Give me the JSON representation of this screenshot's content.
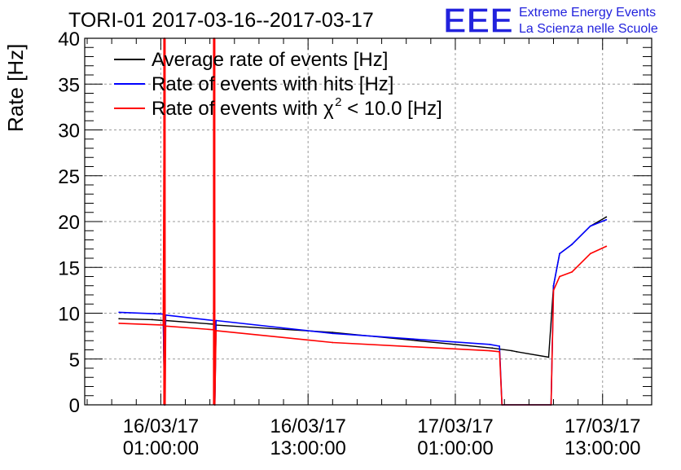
{
  "title": "TORI-01 2017-03-16--2017-03-17",
  "logo": {
    "text": "EEE",
    "line1": "Extreme Energy Events",
    "line2": "La Scienza nelle Scuole"
  },
  "colors": {
    "average": "#000000",
    "hits": "#0000ff",
    "chi2": "#ff0000",
    "grid": "#9a9a9a",
    "logo": "#2222dd"
  },
  "chart_data": {
    "type": "line",
    "title": "TORI-01 2017-03-16--2017-03-17",
    "ylabel": "Rate [Hz]",
    "ylim": [
      0,
      40
    ],
    "y_ticks": [
      "0",
      "5",
      "10",
      "15",
      "20",
      "25",
      "30",
      "35",
      "40"
    ],
    "x_ticks": [
      {
        "date": "16/03/17",
        "time": "01:00:00"
      },
      {
        "date": "16/03/17",
        "time": "13:00:00"
      },
      {
        "date": "17/03/17",
        "time": "01:00:00"
      },
      {
        "date": "17/03/17",
        "time": "13:00:00"
      }
    ],
    "xlim_hours_from_2017_03_16_00_00": [
      -5.2,
      41.0
    ],
    "grid": true,
    "legend_position": "top-left",
    "legend": [
      {
        "label": "Average rate of events [Hz]",
        "color": "#000000"
      },
      {
        "label": "Rate of events with hits [Hz]",
        "color": "#0000ff"
      },
      {
        "label": "Rate of events with",
        "label_suffix": "< 10.0 [Hz]",
        "chi": "χ",
        "sup": "2",
        "color": "#ff0000"
      }
    ],
    "series": [
      {
        "name": "Average rate of events [Hz]",
        "color": "#000000",
        "x": [
          -2.4,
          0.3,
          1.2,
          1.3,
          1.4,
          5.3,
          5.4,
          5.5,
          15.0,
          28.0,
          29.6,
          30.0,
          32.6,
          33.0,
          33.5,
          34.5,
          36.0,
          37.3
        ],
        "y": [
          9.4,
          9.3,
          9.2,
          0,
          9.2,
          8.8,
          0,
          8.7,
          7.9,
          6.2,
          5.9,
          5.8,
          5.2,
          13.0,
          16.5,
          17.5,
          19.5,
          20.5
        ]
      },
      {
        "name": "Rate of events with hits [Hz]",
        "color": "#0000ff",
        "x": [
          -2.4,
          1.2,
          1.3,
          1.4,
          5.3,
          5.4,
          5.5,
          15.0,
          27.8,
          28.6,
          28.8,
          32.8,
          33.0,
          33.5,
          34.5,
          36.0,
          37.3
        ],
        "y": [
          10.1,
          9.9,
          0,
          9.8,
          9.2,
          0,
          9.2,
          7.8,
          6.6,
          6.4,
          0,
          0,
          13.0,
          16.5,
          17.5,
          19.5,
          20.2
        ]
      },
      {
        "name": "Rate of events with χ2 < 10.0 [Hz]",
        "color": "#ff0000",
        "x": [
          -2.4,
          1.2,
          1.3,
          1.35,
          1.4,
          5.3,
          5.35,
          5.4,
          5.5,
          15.0,
          27.8,
          28.6,
          28.8,
          32.8,
          33.0,
          33.5,
          34.5,
          36.0,
          37.3
        ],
        "y": [
          8.9,
          8.7,
          40,
          0,
          8.6,
          8.2,
          40,
          0,
          8.1,
          6.8,
          5.9,
          5.8,
          0,
          0,
          12.5,
          14.0,
          14.5,
          16.5,
          17.3
        ]
      }
    ]
  }
}
